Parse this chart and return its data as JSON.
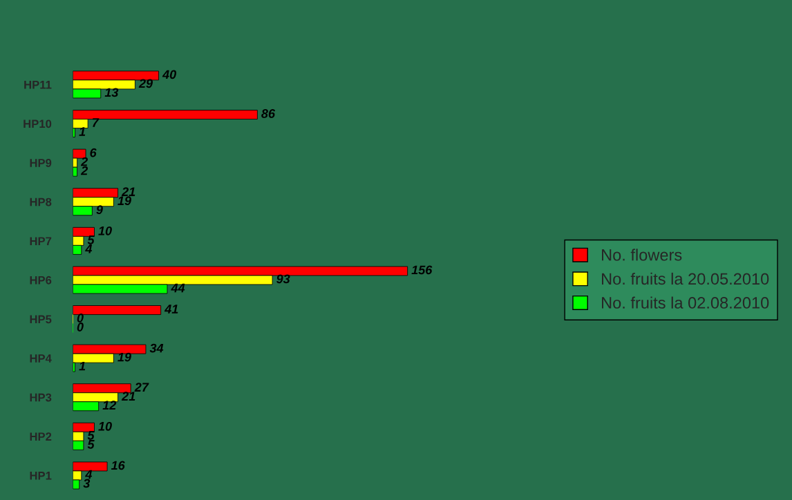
{
  "chart_data": {
    "type": "bar",
    "orientation": "horizontal",
    "categories": [
      "HP11",
      "HP10",
      "HP9",
      "HP8",
      "HP7",
      "HP6",
      "HP5",
      "HP4",
      "HP3",
      "HP2",
      "HP1"
    ],
    "series": [
      {
        "name": "No. flowers",
        "color": "#ff0000",
        "values": [
          40,
          86,
          6,
          21,
          10,
          156,
          41,
          34,
          27,
          10,
          16
        ]
      },
      {
        "name": "No. fruits la 20.05.2010",
        "color": "#ffff00",
        "values": [
          29,
          7,
          2,
          19,
          5,
          93,
          0,
          19,
          21,
          5,
          4
        ]
      },
      {
        "name": "No. fruits la 02.08.2010",
        "color": "#00ff00",
        "values": [
          13,
          1,
          2,
          9,
          4,
          44,
          0,
          1,
          12,
          5,
          3
        ]
      }
    ],
    "data_labels": true,
    "legend": "right",
    "grid": false
  }
}
